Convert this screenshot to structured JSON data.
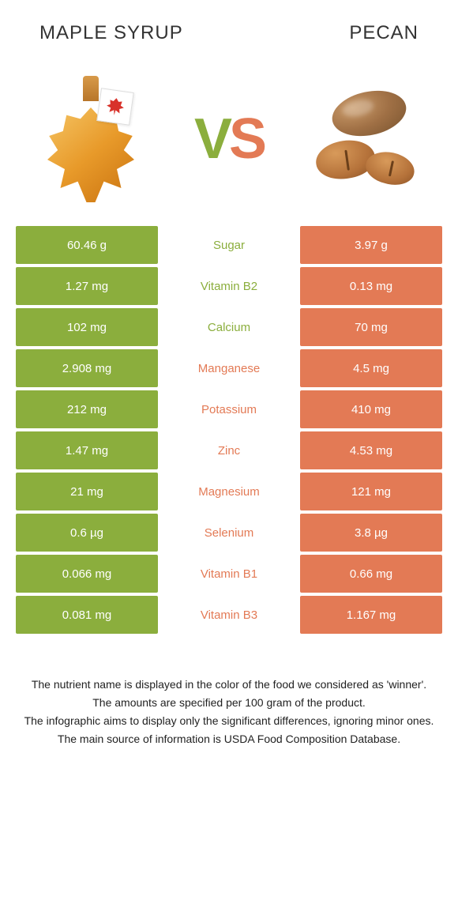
{
  "header": {
    "left_title": "MAPLE SYRUP",
    "right_title": "PECAN"
  },
  "vs": {
    "v": "V",
    "s": "S"
  },
  "colors": {
    "green": "#8bae3d",
    "coral": "#e37a55",
    "text": "#333333",
    "bg": "#ffffff"
  },
  "rows": [
    {
      "nutrient": "Sugar",
      "left": "60.46 g",
      "right": "3.97 g",
      "winner": "left"
    },
    {
      "nutrient": "Vitamin B2",
      "left": "1.27 mg",
      "right": "0.13 mg",
      "winner": "left"
    },
    {
      "nutrient": "Calcium",
      "left": "102 mg",
      "right": "70 mg",
      "winner": "left"
    },
    {
      "nutrient": "Manganese",
      "left": "2.908 mg",
      "right": "4.5 mg",
      "winner": "right"
    },
    {
      "nutrient": "Potassium",
      "left": "212 mg",
      "right": "410 mg",
      "winner": "right"
    },
    {
      "nutrient": "Zinc",
      "left": "1.47 mg",
      "right": "4.53 mg",
      "winner": "right"
    },
    {
      "nutrient": "Magnesium",
      "left": "21 mg",
      "right": "121 mg",
      "winner": "right"
    },
    {
      "nutrient": "Selenium",
      "left": "0.6 µg",
      "right": "3.8 µg",
      "winner": "right"
    },
    {
      "nutrient": "Vitamin B1",
      "left": "0.066 mg",
      "right": "0.66 mg",
      "winner": "right"
    },
    {
      "nutrient": "Vitamin B3",
      "left": "0.081 mg",
      "right": "1.167 mg",
      "winner": "right"
    }
  ],
  "footer": {
    "line1": "The nutrient name is displayed in the color of the food we considered as 'winner'.",
    "line2": "The amounts are specified per 100 gram of the product.",
    "line3": "The infographic aims to display only the significant differences, ignoring minor ones.",
    "line4": "The main source of information is USDA Food Composition Database."
  }
}
